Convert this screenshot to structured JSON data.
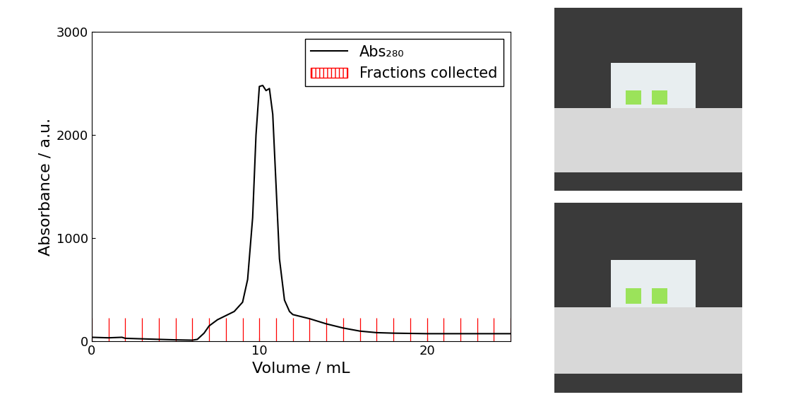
{
  "chart_data": {
    "type": "line",
    "x_label": "Volume / mL",
    "y_label": "Absorbance / a.u.",
    "xlim": [
      0,
      25
    ],
    "xticks": [
      0,
      10,
      20
    ],
    "ylim": [
      0,
      3000
    ],
    "yticks": [
      0,
      1000,
      2000,
      3000
    ],
    "legend": "upper right",
    "series": [
      {
        "name": "Abs₂₈₀",
        "type": "line",
        "color": "#000000",
        "x": [
          0,
          1,
          1.8,
          2,
          3,
          4,
          5,
          6,
          6.3,
          6.7,
          7,
          7.5,
          8,
          8.5,
          9,
          9.3,
          9.6,
          9.8,
          10,
          10.2,
          10.4,
          10.6,
          10.8,
          11,
          11.2,
          11.5,
          11.8,
          12,
          13,
          14,
          15,
          16,
          17,
          18,
          20,
          22,
          25
        ],
        "values": [
          40,
          35,
          40,
          30,
          25,
          20,
          15,
          12,
          20,
          80,
          150,
          210,
          250,
          290,
          380,
          600,
          1200,
          2000,
          2470,
          2480,
          2430,
          2450,
          2200,
          1500,
          800,
          400,
          290,
          260,
          220,
          170,
          130,
          100,
          85,
          80,
          75,
          75,
          75
        ]
      },
      {
        "name": "Fractions collected",
        "type": "vlines",
        "color": "#ff0000",
        "x": [
          0,
          1,
          2,
          3,
          4,
          5,
          6,
          7,
          8,
          9,
          10,
          11,
          12,
          13,
          14,
          15,
          16,
          17,
          18,
          19,
          20,
          21,
          22,
          23,
          24,
          25
        ],
        "values": [
          230,
          230,
          230,
          230,
          230,
          230,
          230,
          230,
          230,
          230,
          230,
          230,
          230,
          230,
          230,
          230,
          230,
          230,
          230,
          230,
          230,
          230,
          230,
          230,
          230,
          230
        ]
      }
    ]
  }
}
